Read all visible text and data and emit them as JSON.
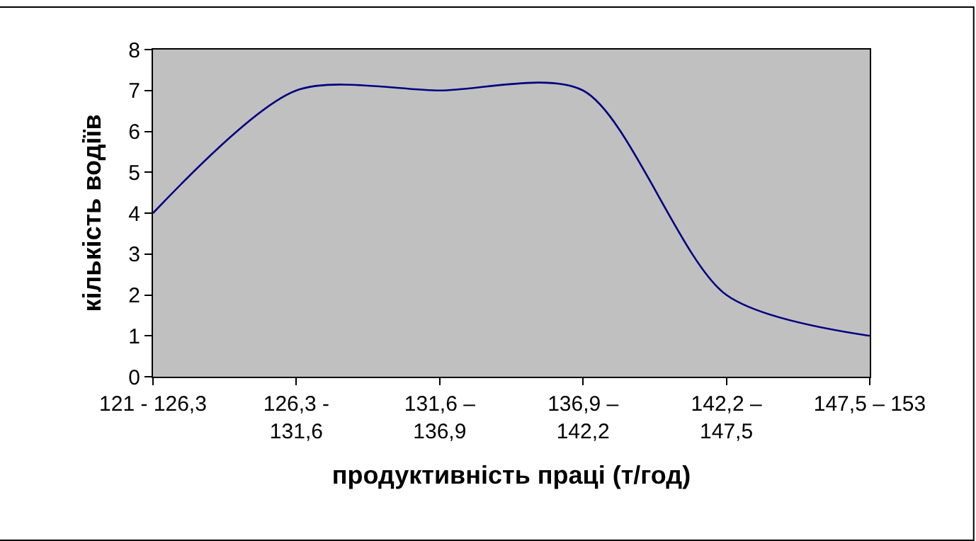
{
  "chart_data": {
    "type": "line",
    "xlabel": "продуктивність праці (т/год)",
    "ylabel": "кількість водіїв",
    "categories": [
      "121 - 126,3",
      "126,3 - 131,6",
      "131,6 – 136,9",
      "136,9 – 142,2",
      "142,2 – 147,5",
      "147,5 – 153"
    ],
    "series": [
      {
        "color": "#000080",
        "values": [
          4,
          7,
          7,
          7,
          2,
          1
        ]
      }
    ],
    "ylim": [
      0,
      8
    ],
    "yticks": [
      0,
      1,
      2,
      3,
      4,
      5,
      6,
      7,
      8
    ],
    "grid": false,
    "marker": "none",
    "line_style": "solid"
  }
}
